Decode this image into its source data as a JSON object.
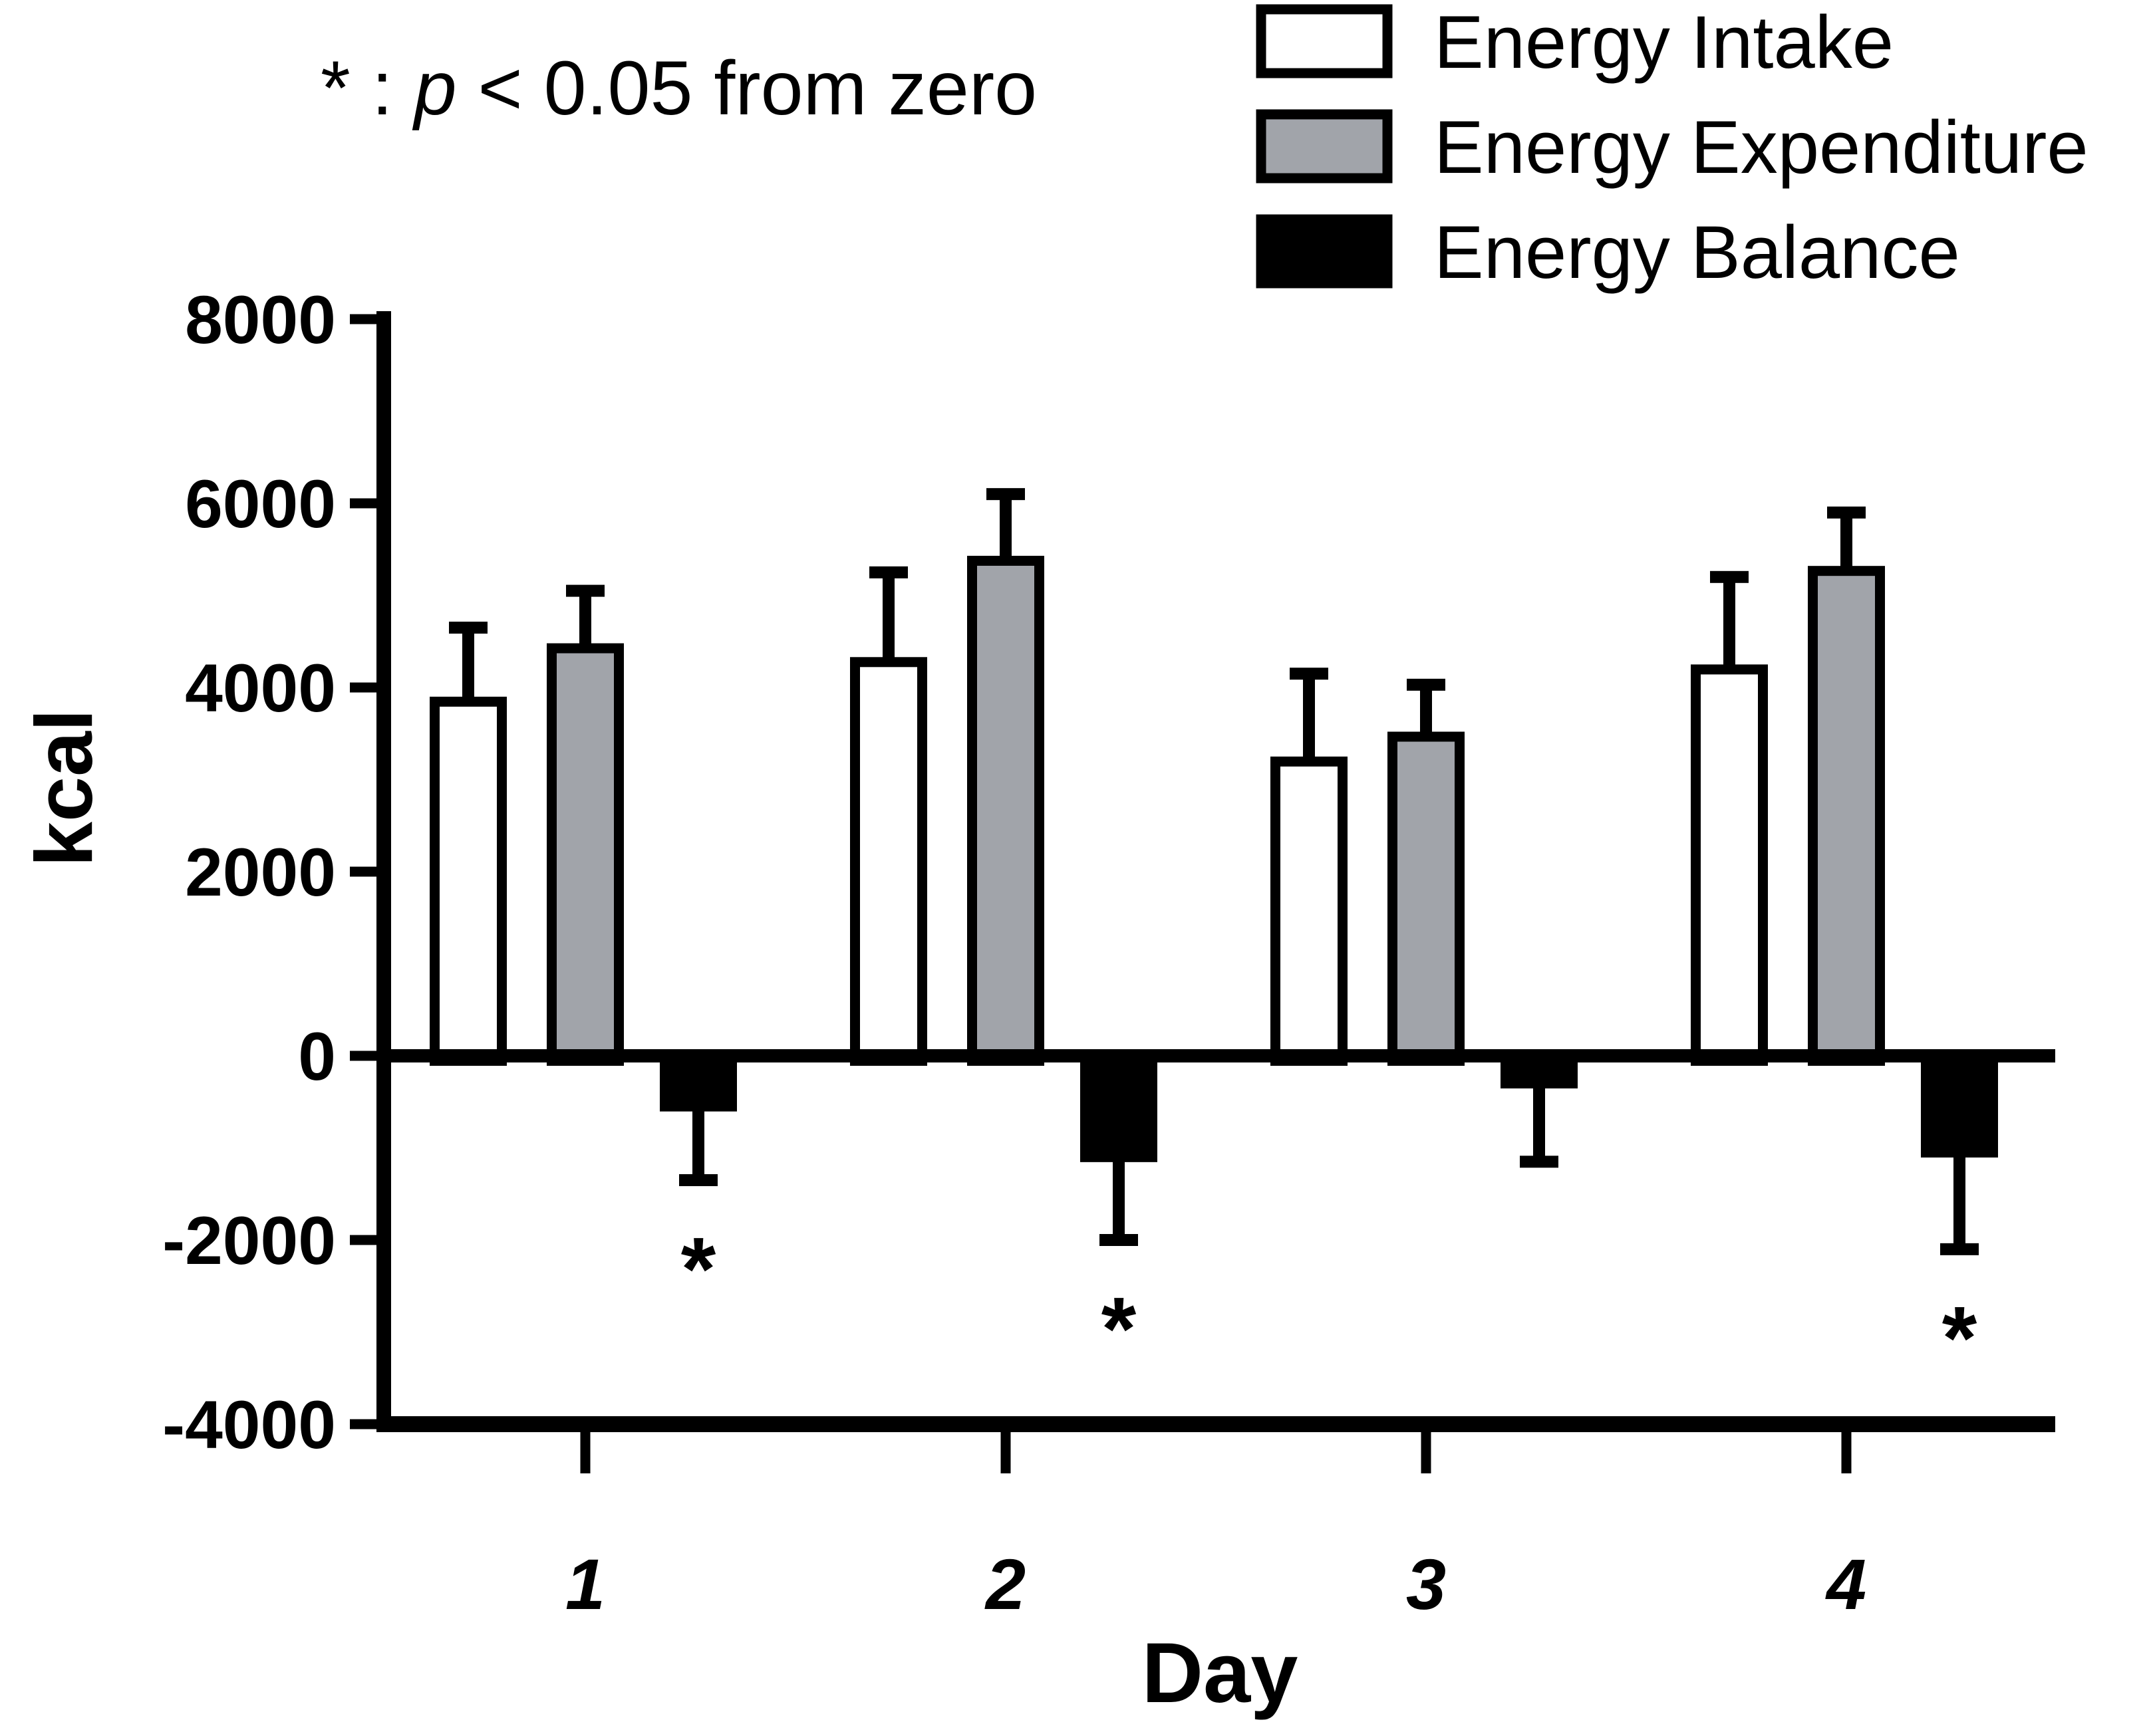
{
  "figure": {
    "note": {
      "prefix": "* : ",
      "p": "p",
      "suffix": " < 0.05 from zero"
    }
  },
  "chart_data": {
    "type": "bar",
    "title": "",
    "xlabel": "Day",
    "ylabel": "kcal",
    "ylim": [
      -4000,
      8000
    ],
    "yticks": [
      8000,
      6000,
      4000,
      2000,
      0,
      -2000,
      -4000
    ],
    "categories": [
      "1",
      "2",
      "3",
      "4"
    ],
    "series": [
      {
        "name": "Energy Intake",
        "fill": "#ffffff",
        "values": [
          3900,
          4330,
          3250,
          4250
        ],
        "errors": [
          750,
          920,
          900,
          950
        ]
      },
      {
        "name": "Energy Expenditure",
        "fill": "#a1a4aa",
        "values": [
          4480,
          5430,
          3520,
          5320
        ],
        "errors": [
          570,
          670,
          510,
          580
        ]
      },
      {
        "name": "Energy Balance",
        "fill": "#000000",
        "values": [
          -550,
          -1100,
          -300,
          -1050
        ],
        "errors": [
          800,
          900,
          850,
          1050
        ]
      }
    ],
    "error_bar_style": "one-sided, away from zero, capped",
    "significance": {
      "symbol": "*",
      "meaning": "p < 0.05 from zero",
      "marked_categories": [
        "1",
        "2",
        "4"
      ],
      "marked_series": "Energy Balance"
    },
    "legend_position": "top-right",
    "grid": false,
    "bar_edge_color": "#000000",
    "axis_color": "#000000",
    "background": "#ffffff"
  }
}
